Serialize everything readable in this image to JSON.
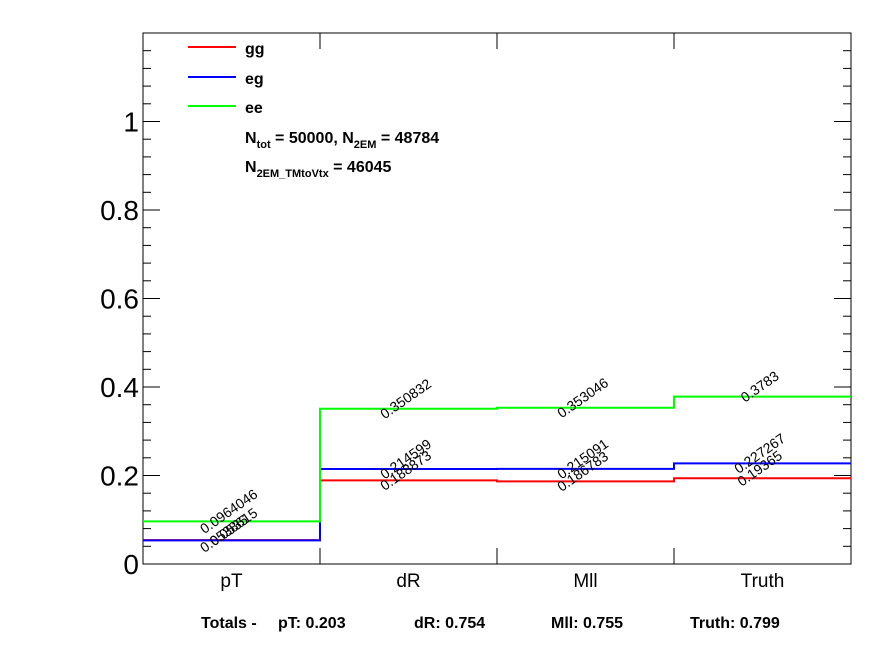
{
  "chart_data": {
    "type": "line",
    "subtype": "step",
    "categories": [
      "pT",
      "dR",
      "Mll",
      "Truth"
    ],
    "ylim": [
      0,
      1.2
    ],
    "y_ticks": [
      "0",
      "0.2",
      "0.4",
      "0.6",
      "0.8",
      "1"
    ],
    "xlabel": "",
    "ylabel": "",
    "title": "",
    "series": [
      {
        "name": "gg",
        "color": "#ff0000",
        "values": [
          0.0538615,
          0.188873,
          0.186783,
          0.19365
        ],
        "labels": [
          "0.0538615",
          "0.188873",
          "0.186783",
          "0.19365"
        ]
      },
      {
        "name": "eg",
        "color": "#0000ff",
        "values": [
          0.0535,
          0.214599,
          0.215091,
          0.227267
        ],
        "labels": [
          "0.0535",
          "0.214599",
          "0.215091",
          "0.227267"
        ]
      },
      {
        "name": "ee",
        "color": "#00ff00",
        "values": [
          0.0964046,
          0.350832,
          0.353046,
          0.3783
        ],
        "labels": [
          "0.0964046",
          "0.350832",
          "0.353046",
          "0.3783"
        ]
      }
    ],
    "legend": {
      "placement": "top-left",
      "entries": [
        "gg",
        "eg",
        "ee"
      ],
      "stats": [
        {
          "base": "N",
          "sub": "tot",
          "mid": " = 50000, N",
          "sub2": "2EM",
          "tail": " = 48784"
        },
        {
          "base": "N",
          "sub": "2EM_TMtoVtx",
          "tail": " = 46045"
        }
      ]
    },
    "totals": {
      "prefix": "Totals -",
      "items": [
        "pT: 0.203",
        "dR: 0.754",
        "Mll: 0.755",
        "Truth: 0.799"
      ]
    }
  }
}
